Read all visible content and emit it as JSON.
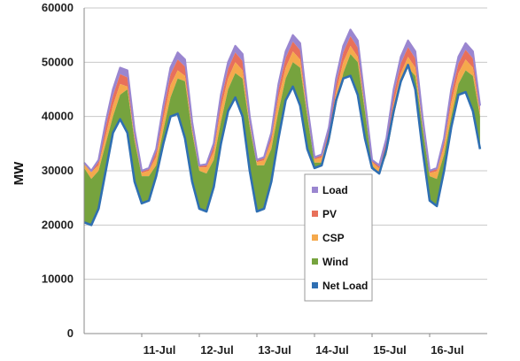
{
  "chart_data": {
    "type": "area",
    "title": "",
    "xlabel": "",
    "ylabel": "MW",
    "ylim": [
      0,
      60000
    ],
    "yticks": [
      0,
      10000,
      20000,
      30000,
      40000,
      50000,
      60000
    ],
    "yticks_labels": [
      "0",
      "10000",
      "20000",
      "30000",
      "40000",
      "50000",
      "60000"
    ],
    "xlim_days": [
      10.0,
      17.0
    ],
    "xticks": [
      {
        "label": "11-Jul",
        "day": 11
      },
      {
        "label": "12-Jul",
        "day": 12
      },
      {
        "label": "13-Jul",
        "day": 13
      },
      {
        "label": "14-Jul",
        "day": 14
      },
      {
        "label": "15-Jul",
        "day": 15
      },
      {
        "label": "16-Jul",
        "day": 16
      }
    ],
    "grid": "horizontal",
    "legend_position": "center-right",
    "stack_order": [
      "Net Load",
      "Wind",
      "CSP",
      "PV",
      "Load"
    ],
    "series_colors": {
      "Load": "#9a86d0",
      "PV": "#e8705a",
      "CSP": "#f5a94c",
      "Wind": "#76a33e",
      "Net Load": "#2f6fb2"
    },
    "legend": [
      {
        "name": "Load",
        "color": "#9a86d0"
      },
      {
        "name": "PV",
        "color": "#e8705a"
      },
      {
        "name": "CSP",
        "color": "#f5a94c"
      },
      {
        "name": "Wind",
        "color": "#76a33e"
      },
      {
        "name": "Net Load",
        "color": "#2f6fb2"
      }
    ],
    "x_day_start": 10.0,
    "x_step_hours": 3,
    "series": [
      {
        "name": "Load",
        "values": [
          31500,
          30000,
          32000,
          39000,
          45000,
          49000,
          48500,
          37500,
          30000,
          30500,
          34000,
          42000,
          49000,
          51800,
          50500,
          39000,
          31000,
          31200,
          35000,
          44000,
          50000,
          53000,
          51500,
          40000,
          32000,
          32500,
          37000,
          46000,
          52000,
          55000,
          53500,
          42000,
          32500,
          33000,
          38000,
          47000,
          53000,
          56000,
          54000,
          43000,
          32000,
          31000,
          36000,
          45000,
          51000,
          54000,
          52000,
          40000,
          30000,
          30500,
          36000,
          45000,
          51000,
          53500,
          52000,
          42000
        ]
      },
      {
        "name": "PV",
        "values": [
          31400,
          29900,
          31700,
          38200,
          43800,
          47800,
          47200,
          37000,
          29900,
          30300,
          33500,
          41000,
          47800,
          50500,
          49200,
          38500,
          30900,
          31000,
          34500,
          43000,
          48800,
          51800,
          50200,
          39500,
          31900,
          32300,
          36500,
          45000,
          50800,
          53800,
          52200,
          41500,
          32400,
          32800,
          37500,
          46000,
          51800,
          54800,
          52700,
          42500,
          31900,
          30800,
          35500,
          44000,
          49800,
          52800,
          50700,
          39500,
          29900,
          30300,
          35500,
          44000,
          49800,
          52300,
          50700,
          41500
        ]
      },
      {
        "name": "CSP",
        "values": [
          31200,
          29700,
          31000,
          36500,
          42000,
          46000,
          45500,
          36000,
          29600,
          30000,
          32500,
          39500,
          45800,
          48500,
          47500,
          37500,
          30600,
          30600,
          33500,
          41500,
          47000,
          50000,
          48500,
          38500,
          31600,
          31900,
          35500,
          43500,
          49000,
          52000,
          50500,
          40500,
          32100,
          32400,
          36500,
          44500,
          50000,
          53000,
          51000,
          41500,
          31600,
          30400,
          34500,
          42500,
          48000,
          51000,
          49000,
          38500,
          29600,
          29900,
          34500,
          42500,
          48000,
          50500,
          49000,
          40500
        ]
      },
      {
        "name": "Wind",
        "values": [
          30500,
          28500,
          30000,
          35000,
          40000,
          44000,
          45000,
          35500,
          29000,
          29000,
          31000,
          37500,
          43500,
          47000,
          46500,
          37000,
          30000,
          29500,
          32000,
          39000,
          45000,
          48000,
          47000,
          38000,
          31000,
          31000,
          34000,
          41000,
          47000,
          50000,
          49000,
          40000,
          31500,
          31500,
          35000,
          42000,
          48000,
          51500,
          50000,
          41000,
          31000,
          29500,
          33000,
          40000,
          46000,
          49000,
          47500,
          38000,
          29000,
          28500,
          33000,
          40000,
          46000,
          48500,
          47500,
          40000
        ]
      },
      {
        "name": "Net Load",
        "values": [
          20500,
          20000,
          23000,
          30000,
          37000,
          39500,
          37000,
          28000,
          24000,
          24500,
          29000,
          35000,
          40000,
          40500,
          36000,
          28000,
          23000,
          22500,
          27000,
          35000,
          41000,
          43500,
          40000,
          30000,
          22500,
          23000,
          28000,
          36000,
          43000,
          45500,
          42000,
          34000,
          30500,
          31000,
          36000,
          43000,
          47000,
          47500,
          44000,
          36000,
          30500,
          29500,
          34000,
          41000,
          46500,
          49500,
          45000,
          34000,
          24500,
          23500,
          30000,
          38000,
          44000,
          44500,
          41000,
          34000
        ]
      }
    ]
  }
}
